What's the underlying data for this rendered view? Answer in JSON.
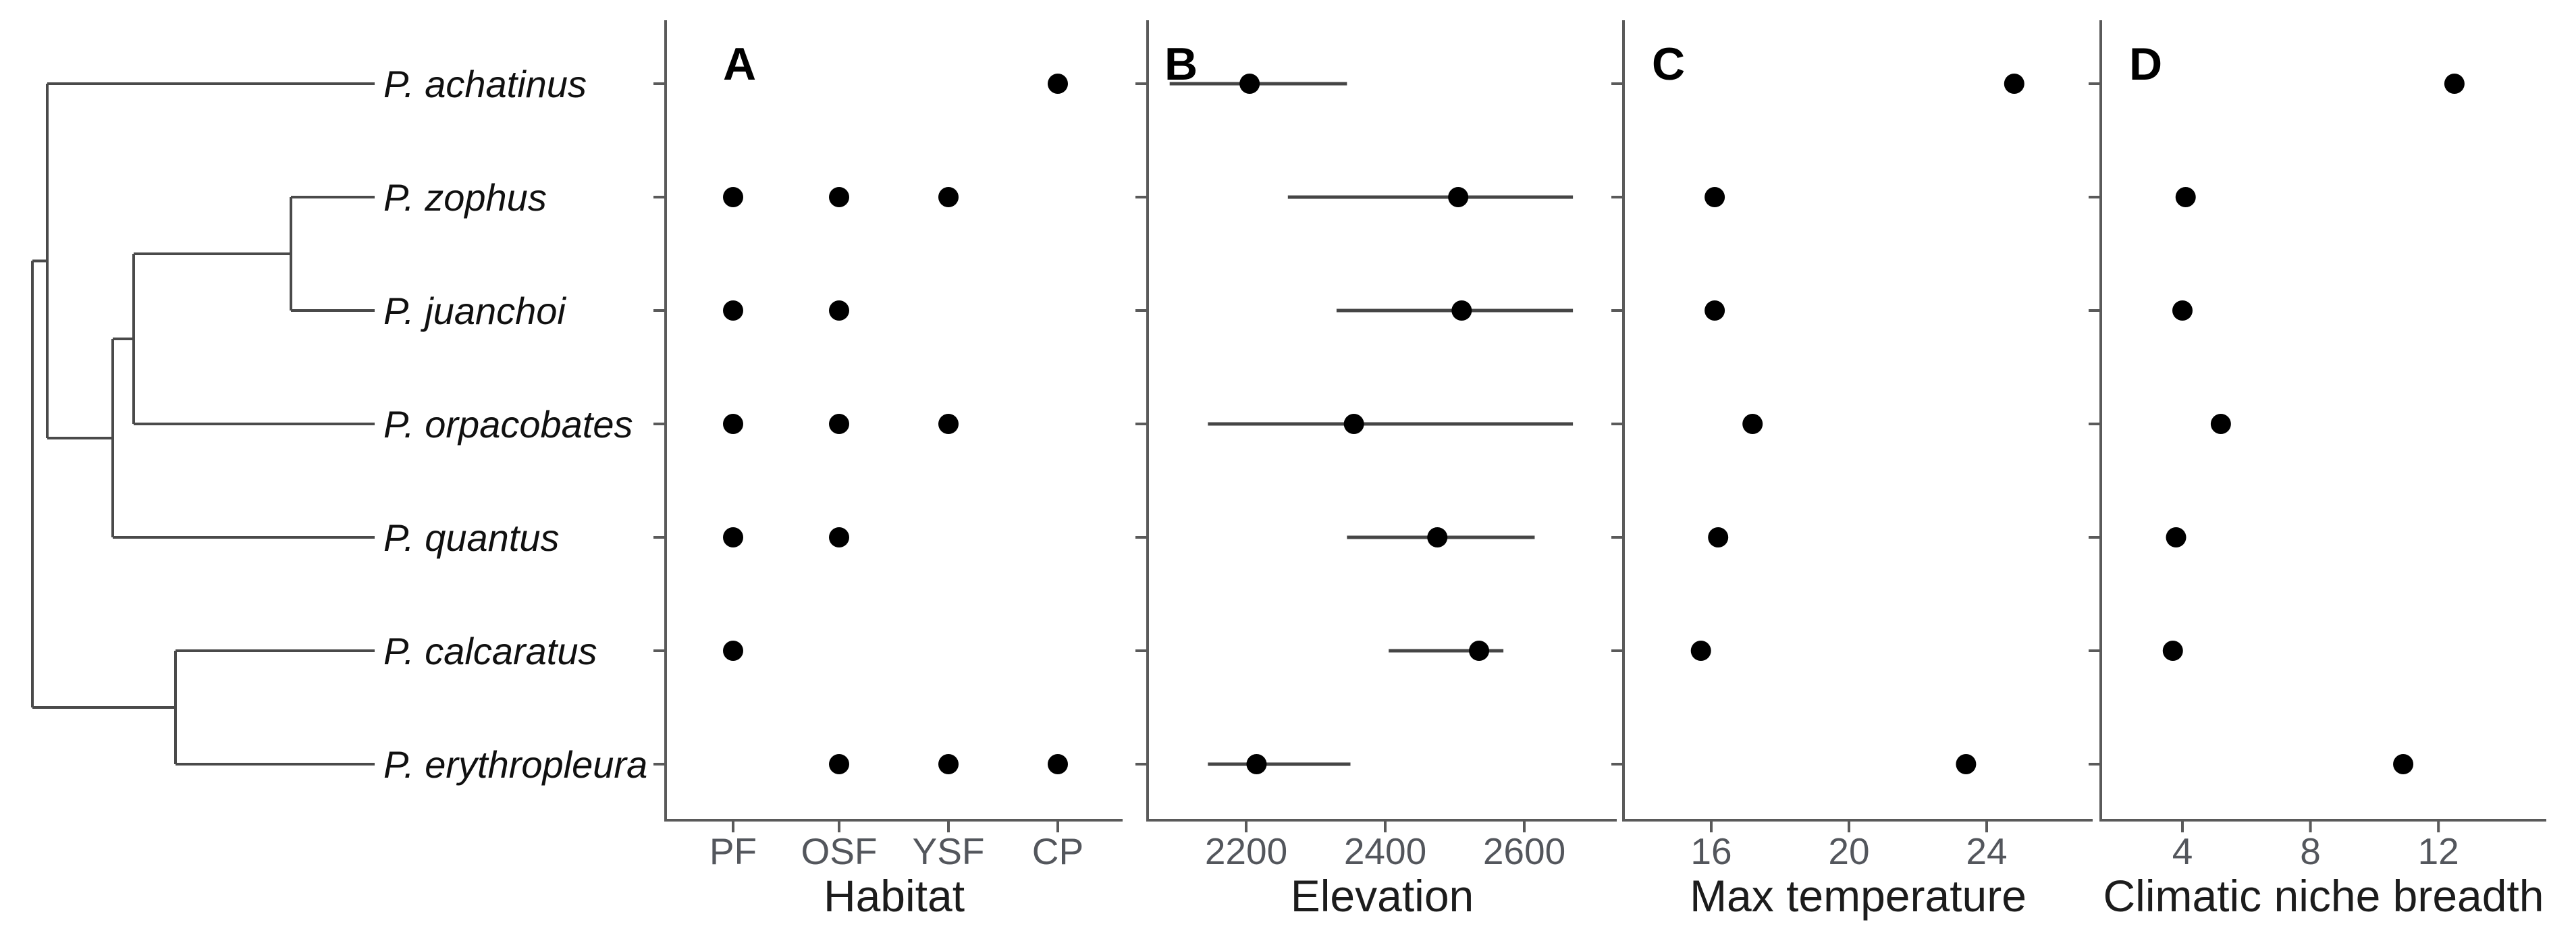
{
  "figure": {
    "species": [
      "P. achatinus",
      "P. zophus",
      "P. juanchoi",
      "P. orpacobates",
      "P. quantus",
      "P. calcaratus",
      "P. erythropleura"
    ],
    "colors": {
      "background": "#ffffff",
      "point": "#000000",
      "error_bar": "#454545",
      "axis": "#5a5a5a",
      "tree": "#4a4a4a",
      "tick_label": "#53565c",
      "axis_title": "#1c1c1c",
      "species_label": "#101010",
      "panel_letter": "#000000"
    }
  },
  "tree": {
    "topology": "((P. achatinus,(((P. zophus,P. juanchoi),P. orpacobates),P. quantus)),(P. calcaratus,P. erythropleura));",
    "root": {
      "x": 48,
      "children": [
        {
          "x": 70,
          "children": [
            {
              "leaf": "P. achatinus"
            },
            {
              "x": 167,
              "children": [
                {
                  "x": 198,
                  "children": [
                    {
                      "x": 431,
                      "children": [
                        {
                          "leaf": "P. zophus"
                        },
                        {
                          "leaf": "P. juanchoi"
                        }
                      ]
                    },
                    {
                      "leaf": "P. orpacobates"
                    }
                  ]
                },
                {
                  "leaf": "P. quantus"
                }
              ]
            }
          ]
        },
        {
          "x": 260,
          "children": [
            {
              "leaf": "P. calcaratus"
            },
            {
              "leaf": "P. erythropleura"
            }
          ]
        }
      ]
    }
  },
  "chart_data": [
    {
      "type": "scatter",
      "panel_label": "A",
      "xlabel": "Habitat",
      "axis_kind": "categorical",
      "x_ticks": [
        "PF",
        "OSF",
        "YSF",
        "CP"
      ],
      "series": [
        {
          "species": "P. achatinus",
          "habitats": [
            "CP"
          ]
        },
        {
          "species": "P. zophus",
          "habitats": [
            "PF",
            "OSF",
            "YSF"
          ]
        },
        {
          "species": "P. juanchoi",
          "habitats": [
            "PF",
            "OSF"
          ]
        },
        {
          "species": "P. orpacobates",
          "habitats": [
            "PF",
            "OSF",
            "YSF"
          ]
        },
        {
          "species": "P. quantus",
          "habitats": [
            "PF",
            "OSF"
          ]
        },
        {
          "species": "P. calcaratus",
          "habitats": [
            "PF"
          ]
        },
        {
          "species": "P. erythropleura",
          "habitats": [
            "OSF",
            "YSF",
            "CP"
          ]
        }
      ]
    },
    {
      "type": "scatter",
      "panel_label": "B",
      "xlabel": "Elevation",
      "axis_kind": "numeric",
      "x_ticks": [
        2200,
        2400,
        2600
      ],
      "xlim": [
        2055,
        2750
      ],
      "series": [
        {
          "species": "P. achatinus",
          "mean": 2205,
          "low": 2090,
          "high": 2345
        },
        {
          "species": "P. zophus",
          "mean": 2505,
          "low": 2260,
          "high": 2670
        },
        {
          "species": "P. juanchoi",
          "mean": 2510,
          "low": 2330,
          "high": 2670
        },
        {
          "species": "P. orpacobates",
          "mean": 2355,
          "low": 2145,
          "high": 2670
        },
        {
          "species": "P. quantus",
          "mean": 2475,
          "low": 2345,
          "high": 2615
        },
        {
          "species": "P. calcaratus",
          "mean": 2535,
          "low": 2405,
          "high": 2570
        },
        {
          "species": "P. erythropleura",
          "mean": 2215,
          "low": 2145,
          "high": 2350
        }
      ]
    },
    {
      "type": "scatter",
      "panel_label": "C",
      "xlabel": "Max temperature",
      "axis_kind": "numeric",
      "x_ticks": [
        16,
        20,
        24
      ],
      "xlim": [
        13.5,
        27.1
      ],
      "series": [
        {
          "species": "P. achatinus",
          "value": 24.8
        },
        {
          "species": "P. zophus",
          "value": 16.1
        },
        {
          "species": "P. juanchoi",
          "value": 16.1
        },
        {
          "species": "P. orpacobates",
          "value": 17.2
        },
        {
          "species": "P. quantus",
          "value": 16.2
        },
        {
          "species": "P. calcaratus",
          "value": 15.7
        },
        {
          "species": "P. erythropleura",
          "value": 23.4
        }
      ]
    },
    {
      "type": "scatter",
      "panel_label": "D",
      "xlabel": "Climatic niche breadth",
      "axis_kind": "numeric",
      "x_ticks": [
        4,
        8,
        12
      ],
      "xlim": [
        1.5,
        15.4
      ],
      "series": [
        {
          "species": "P. achatinus",
          "value": 12.5
        },
        {
          "species": "P. zophus",
          "value": 4.1
        },
        {
          "species": "P. juanchoi",
          "value": 4.0
        },
        {
          "species": "P. orpacobates",
          "value": 5.2
        },
        {
          "species": "P. quantus",
          "value": 3.8
        },
        {
          "species": "P. calcaratus",
          "value": 3.7
        },
        {
          "species": "P. erythropleura",
          "value": 10.9
        }
      ]
    }
  ]
}
